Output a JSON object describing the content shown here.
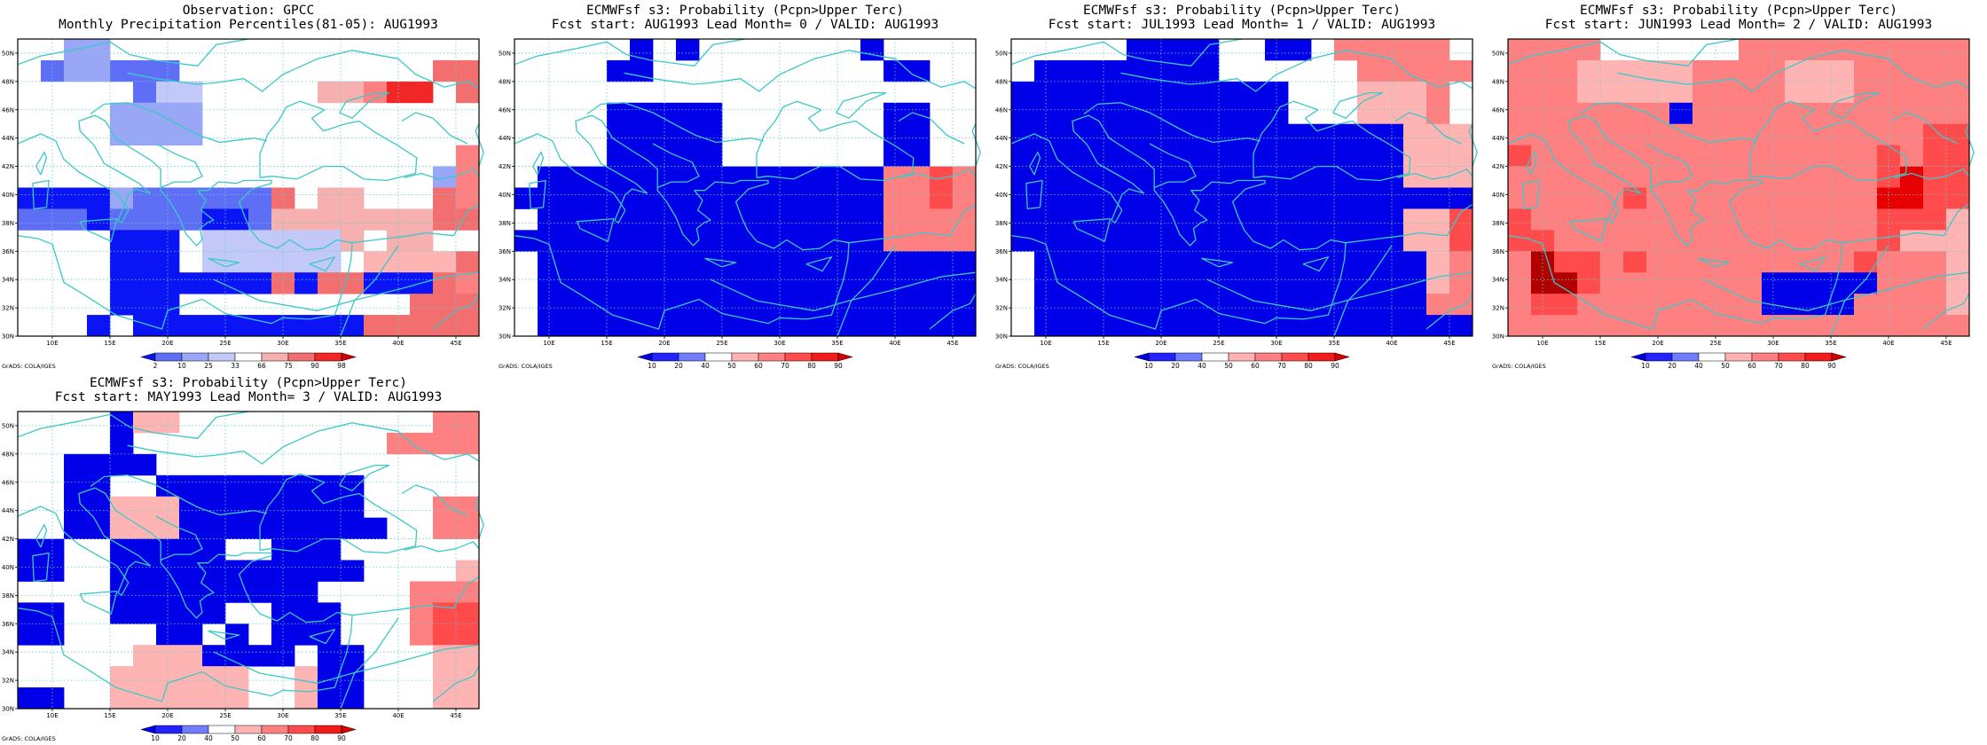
{
  "panels": [
    {
      "title1": "Observation: GPCC",
      "title2": "Monthly Precipitation Percentiles(81-05): AUG1993",
      "credit": "GrADS: COLA/IGES",
      "colorbar": {
        "labels": [
          "2",
          "10",
          "25",
          "33",
          "66",
          "75",
          "90",
          "98"
        ],
        "colors": [
          "#0a14f5",
          "#5f6ff5",
          "#9aa6f6",
          "#c2c8f7",
          "#ffffff",
          "#f6b0b0",
          "#f36e6e",
          "#f12626",
          "#d40000"
        ]
      },
      "grid": [
        "00LL0000000000000000",
        "0MLLMMM00000000000HH",
        "00000MKK00000XXRVV0H",
        "0000LLLL000000000000",
        "0000LLLL000000000000",
        "0000000000000000000R",
        "000000000000000000LR",
        "NNNNLMMMMMMD0XX000HR",
        "MMMNMMMMNNMXXXXXXXHH",
        "0000NNN0KKKKKKX0XX00",
        "0000NNN0KKKKKK0PPPPH",
        "0000NNNNNNNDNHHNNNHR",
        "0000NNN0000000000HHH",
        "000N0NNNNNNNNNNHHHHH"
      ]
    },
    {
      "title1": "ECMWFsf s3: Probability (Pcpn>Upper Terc)",
      "title2": "Fcst start: AUG1993   Lead Month= 0 / VALID: AUG1993",
      "credit": "GrADS: COLA/IGES",
      "colorbar": {
        "labels": [
          "10",
          "20",
          "40",
          "50",
          "60",
          "70",
          "80",
          "90"
        ],
        "colors": [
          "#0000e8",
          "#2323ff",
          "#6f7cff",
          "#ffffff",
          "#ffb4b4",
          "#ff8080",
          "#ff4b4b",
          "#f21a1a",
          "#d60000"
        ]
      },
      "grid": [
        "00000B0B0000000B0000",
        "0000BB0000000000BB00",
        "00000000000000000000",
        "0000BBBBB0000000BB00",
        "0000BBBBB0000000BB00",
        "0000BBBBB0000000BB00",
        "0BBBBBBBBBBBBBBBRRSR",
        "BBBBBBBBBBBBBBBBRRSR",
        "0BBBBBBBBBBBBBBBRRRR",
        "BBBBBBBBBBBBBBBBRRRR",
        "0BBBBBBBBBBBBBBBBBBB",
        "0BBBBBBBBBBBBBBBBBBB",
        "0BBBBBBBBBBBBBBBBBBB",
        "0BBBBBBBBBBBBBBBBBBB"
      ]
    },
    {
      "title1": "ECMWFsf s3: Probability (Pcpn>Upper Terc)",
      "title2": "Fcst start: JUL1993   Lead Month= 1 / VALID: AUG1993",
      "credit": "GrADS: COLA/IGES",
      "colorbar": {
        "labels": [
          "10",
          "20",
          "40",
          "50",
          "60",
          "70",
          "80",
          "90"
        ],
        "colors": [
          "#0000e8",
          "#2323ff",
          "#6f7cff",
          "#ffffff",
          "#ffb4b4",
          "#ff8080",
          "#ff4b4b",
          "#f21a1a",
          "#d60000"
        ]
      },
      "grid": [
        "00000BBBB00BB0RRRRR0",
        "0BBBBBBBB000000RRRRR",
        "BBBBBBBBBBBB000PPPR0",
        "BBBBBBBBBBBB000PPPR0",
        "BBBBBBBBBBBBBBBBBPPP",
        "BBBBBBBBBBBBBBBBBPPP",
        "BBBBBBBBBBBBBBBBBPPP",
        "BBBBBBBBBBBBBBBBBBBB",
        "BBBBBBBBBBBBBBBBBPPS",
        "BBBBBBBBBBBBBBBBBPPS",
        "0BBBBBBBBBBBBBBBBBPR",
        "0BBBBBBBBBBBBBBBBBPR",
        "0BBBBBBBBBBBBBBBBBRR",
        "0BBBBBBBBBBBBBBBBBBB"
      ]
    },
    {
      "title1": "ECMWFsf s3: Probability (Pcpn>Upper Terc)",
      "title2": "Fcst start: JUN1993   Lead Month= 2 / VALID: AUG1993",
      "credit": "GrADS: COLA/IGES",
      "colorbar": {
        "labels": [
          "10",
          "20",
          "40",
          "50",
          "60",
          "70",
          "80",
          "90"
        ],
        "colors": [
          "#0000e8",
          "#2323ff",
          "#6f7cff",
          "#ffffff",
          "#ffb4b4",
          "#ff8080",
          "#ff4b4b",
          "#f21a1a",
          "#d60000"
        ]
      },
      "grid": [
        "RRRR000000RRRRRRRRRR",
        "RRRPPPPPRRRRPPPRRRRR",
        "RRRPPPPPRRRRPPPRRRRR",
        "RRRRRRRBRRRRRRRRRRRR",
        "RRRRRRRRRRRRRRRRRRSS",
        "SRRRRRRRRRRRRRRRSRSS",
        "RRRRRRRRRRRRRRRRSTSS",
        "RRRRRSRRRRRRRRRRTTSS",
        "SRRRRRRRRRRRRRRRSSSP",
        "SSRRRRRRRRRRRRRRSPPP",
        "RUSSRSRRRRRRRRRSRRRP",
        "RUUSRRRRRRRBBBBBRRRP",
        "RSSRRRRRRRRBBBBRRRRP",
        "RRRRRRRRRRRRRRRRRRRR"
      ]
    },
    {
      "title1": "ECMWFsf s3: Probability (Pcpn>Upper Terc)",
      "title2": "Fcst start: MAY1993   Lead Month= 3 / VALID: AUG1993",
      "credit": "GrADS: COLA/IGES",
      "colorbar": {
        "labels": [
          "10",
          "20",
          "40",
          "50",
          "60",
          "70",
          "80",
          "90"
        ],
        "colors": [
          "#0000e8",
          "#2323ff",
          "#6f7cff",
          "#ffffff",
          "#ffb4b4",
          "#ff8080",
          "#ff4b4b",
          "#f21a1a",
          "#d60000"
        ]
      },
      "grid": [
        "0000BPP00000000000RR",
        "0000B00000000000RRRR",
        "00BBBB00000000000000",
        "00BB00BBBBBBBBB00000",
        "00BBPPPBBBBBBBB000RR",
        "00BBPPPBBBBBBBBB00RR",
        "BB00BBBBB00BBB000000",
        "BB00BBBBBBBBBBB0000P",
        "0000BBBBBBBBB0000RRR",
        "BB00BBBBB00BBB000RSS",
        "BB0000BB0B0BBB000RSS",
        "00000PPPBBBB0BB000PP",
        "0000PPPPPP00PBB000PP",
        "BB00PPPPPP00PBB000PP"
      ]
    }
  ],
  "axes": {
    "lon_labels": [
      "10E",
      "15E",
      "20E",
      "25E",
      "30E",
      "35E",
      "40E",
      "45E"
    ],
    "lat_labels": [
      "30N",
      "32N",
      "34N",
      "36N",
      "38N",
      "40N",
      "42N",
      "44N",
      "46N",
      "48N",
      "50N"
    ],
    "lon_range": [
      7,
      47
    ],
    "lat_range": [
      30,
      51
    ]
  },
  "cell_palette": {
    "0": "#ffffff",
    "B": "#0000e8",
    "N": "#0a14f5",
    "M": "#5f6ff5",
    "L": "#9aa6f6",
    "K": "#c2c8f7",
    "P": "#ffb4b4",
    "X": "#f6b0b0",
    "R": "#ff8080",
    "D": "#f36e6e",
    "H": "#f36e6e",
    "S": "#ff4b4b",
    "V": "#f12626",
    "T": "#e60000",
    "U": "#b00000"
  },
  "colors": {
    "coast": "#3cc8c8",
    "gridline": "#66cccc",
    "frame": "#000000"
  }
}
